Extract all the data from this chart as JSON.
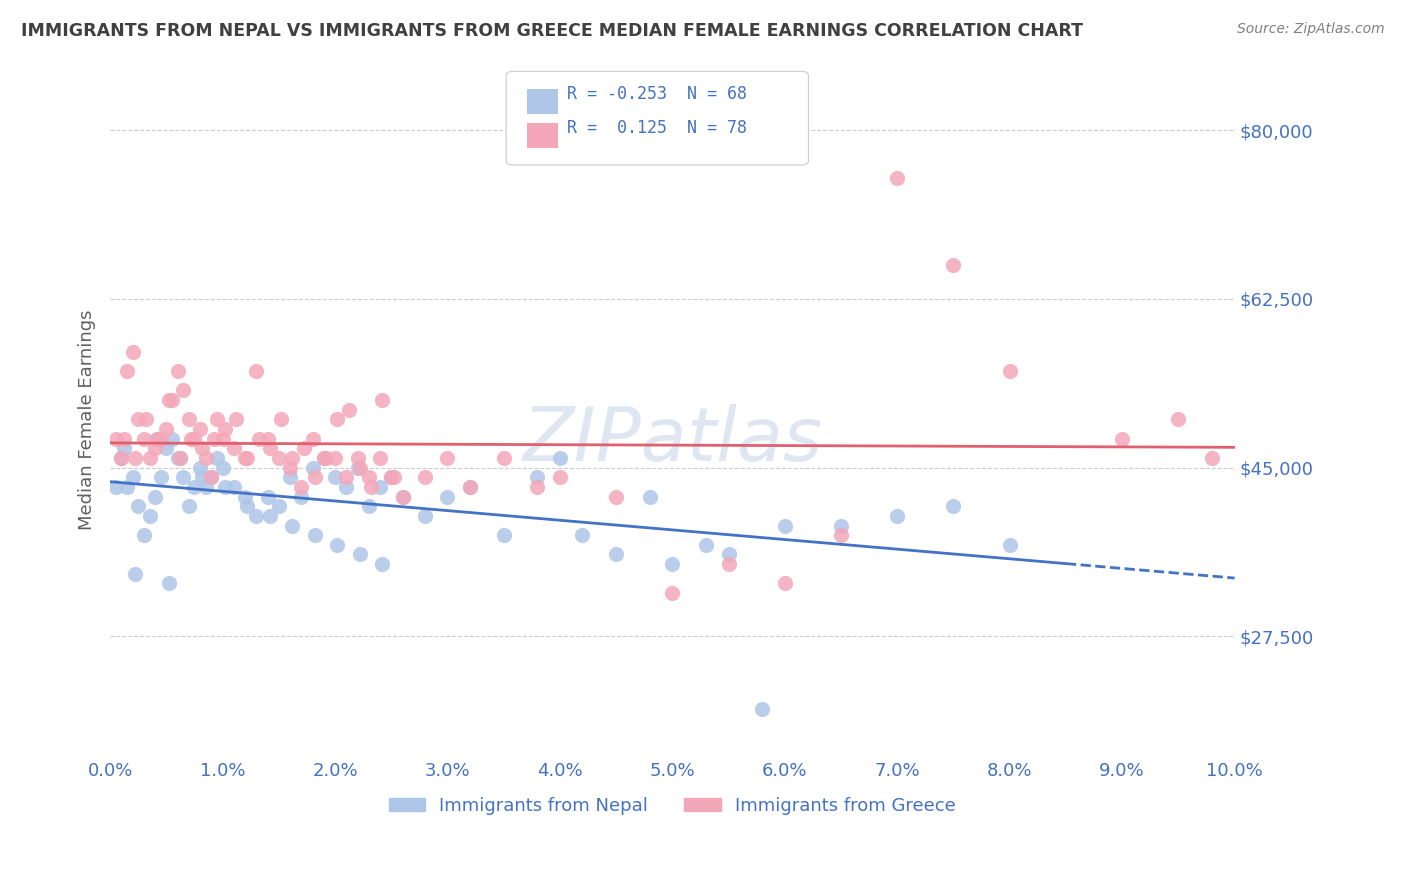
{
  "title": "IMMIGRANTS FROM NEPAL VS IMMIGRANTS FROM GREECE MEDIAN FEMALE EARNINGS CORRELATION CHART",
  "source": "Source: ZipAtlas.com",
  "ylabel": "Median Female Earnings",
  "y_ticks": [
    27500,
    45000,
    62500,
    80000
  ],
  "y_tick_labels": [
    "$27,500",
    "$45,000",
    "$62,500",
    "$80,000"
  ],
  "x_min": 0.0,
  "x_max": 10.0,
  "y_min": 15000,
  "y_max": 85000,
  "nepal_R": -0.253,
  "nepal_N": 68,
  "greece_R": 0.125,
  "greece_N": 78,
  "nepal_color": "#aec6e8",
  "greece_color": "#f4a7b9",
  "nepal_line_color": "#4472c4",
  "greece_line_color": "#e06070",
  "title_color": "#404040",
  "axis_label_color": "#4472c4",
  "legend_R_color": "#4472c4",
  "watermark_color": "#c8d8e8",
  "background_color": "#ffffff",
  "nepal_scatter_x": [
    0.05,
    0.1,
    0.15,
    0.2,
    0.25,
    0.3,
    0.35,
    0.4,
    0.45,
    0.5,
    0.55,
    0.6,
    0.65,
    0.7,
    0.75,
    0.8,
    0.85,
    0.9,
    0.95,
    1.0,
    1.1,
    1.2,
    1.3,
    1.4,
    1.5,
    1.6,
    1.7,
    1.8,
    1.9,
    2.0,
    2.1,
    2.2,
    2.3,
    2.4,
    2.5,
    2.6,
    2.8,
    3.0,
    3.2,
    3.5,
    3.8,
    4.0,
    4.2,
    4.5,
    4.8,
    5.0,
    5.3,
    5.5,
    5.8,
    6.0,
    6.5,
    7.0,
    7.5,
    8.0,
    0.12,
    0.42,
    0.62,
    0.82,
    1.02,
    1.22,
    1.42,
    1.62,
    1.82,
    2.02,
    2.22,
    2.42,
    0.22,
    0.52
  ],
  "nepal_scatter_y": [
    43000,
    46000,
    43000,
    44000,
    41000,
    38000,
    40000,
    42000,
    44000,
    47000,
    48000,
    46000,
    44000,
    41000,
    43000,
    45000,
    43000,
    44000,
    46000,
    45000,
    43000,
    42000,
    40000,
    42000,
    41000,
    44000,
    42000,
    45000,
    46000,
    44000,
    43000,
    45000,
    41000,
    43000,
    44000,
    42000,
    40000,
    42000,
    43000,
    38000,
    44000,
    46000,
    38000,
    36000,
    42000,
    35000,
    37000,
    36000,
    20000,
    39000,
    39000,
    40000,
    41000,
    37000,
    47000,
    48000,
    46000,
    44000,
    43000,
    41000,
    40000,
    39000,
    38000,
    37000,
    36000,
    35000,
    34000,
    33000
  ],
  "greece_scatter_x": [
    0.05,
    0.1,
    0.15,
    0.2,
    0.25,
    0.3,
    0.35,
    0.4,
    0.45,
    0.5,
    0.55,
    0.6,
    0.65,
    0.7,
    0.75,
    0.8,
    0.85,
    0.9,
    0.95,
    1.0,
    1.1,
    1.2,
    1.3,
    1.4,
    1.5,
    1.6,
    1.7,
    1.8,
    1.9,
    2.0,
    2.1,
    2.2,
    2.3,
    2.4,
    2.5,
    2.6,
    2.8,
    3.0,
    3.2,
    3.5,
    3.8,
    4.0,
    4.5,
    5.0,
    5.5,
    6.0,
    6.5,
    7.0,
    7.5,
    8.0,
    0.12,
    0.22,
    0.32,
    0.42,
    0.52,
    0.62,
    0.72,
    0.82,
    0.92,
    1.02,
    1.12,
    1.22,
    1.32,
    1.42,
    1.52,
    1.62,
    1.72,
    1.82,
    1.92,
    2.02,
    2.12,
    2.22,
    2.32,
    2.42,
    2.52,
    9.5,
    9.8,
    9.0
  ],
  "greece_scatter_y": [
    48000,
    46000,
    55000,
    57000,
    50000,
    48000,
    46000,
    47000,
    48000,
    49000,
    52000,
    55000,
    53000,
    50000,
    48000,
    49000,
    46000,
    44000,
    50000,
    48000,
    47000,
    46000,
    55000,
    48000,
    46000,
    45000,
    43000,
    48000,
    46000,
    46000,
    44000,
    46000,
    44000,
    46000,
    44000,
    42000,
    44000,
    46000,
    43000,
    46000,
    43000,
    44000,
    42000,
    32000,
    35000,
    33000,
    38000,
    75000,
    66000,
    55000,
    48000,
    46000,
    50000,
    48000,
    52000,
    46000,
    48000,
    47000,
    48000,
    49000,
    50000,
    46000,
    48000,
    47000,
    50000,
    46000,
    47000,
    44000,
    46000,
    50000,
    51000,
    45000,
    43000,
    52000,
    44000,
    50000,
    46000,
    48000
  ]
}
